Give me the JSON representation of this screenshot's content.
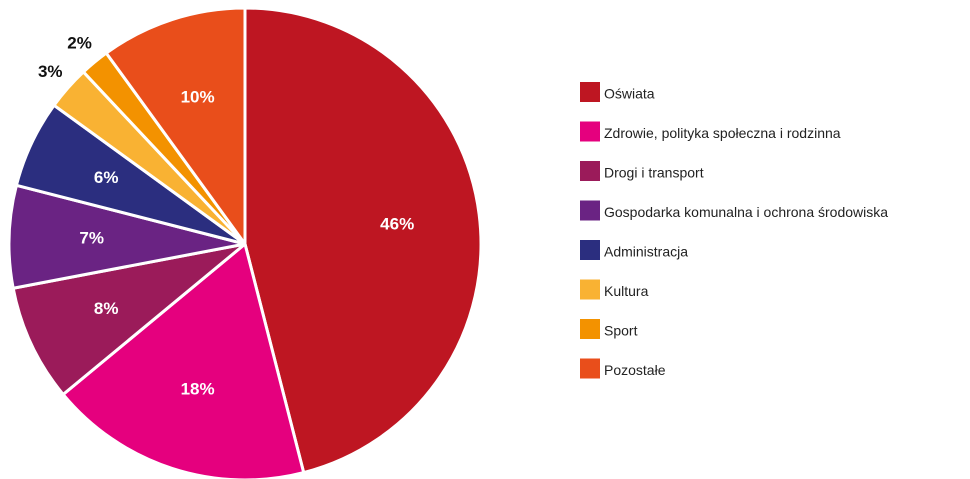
{
  "chart_data": {
    "type": "pie",
    "categories": [
      "Oświata",
      "Zdrowie, polityka społeczna i rodzinna",
      "Drogi i transport",
      "Gospodarka komunalna i ochrona środowiska",
      "Administracja",
      "Kultura",
      "Sport",
      "Pozostałe"
    ],
    "values": [
      46,
      18,
      8,
      7,
      6,
      3,
      2,
      10
    ],
    "value_labels": [
      "46%",
      "18%",
      "8%",
      "7%",
      "6%",
      "3%",
      "2%",
      "10%"
    ],
    "colors": [
      "#be1622",
      "#e5007e",
      "#9b1b5a",
      "#6a2383",
      "#2b2e7f",
      "#f9b233",
      "#f39200",
      "#e94e1b"
    ],
    "legend": "right"
  }
}
